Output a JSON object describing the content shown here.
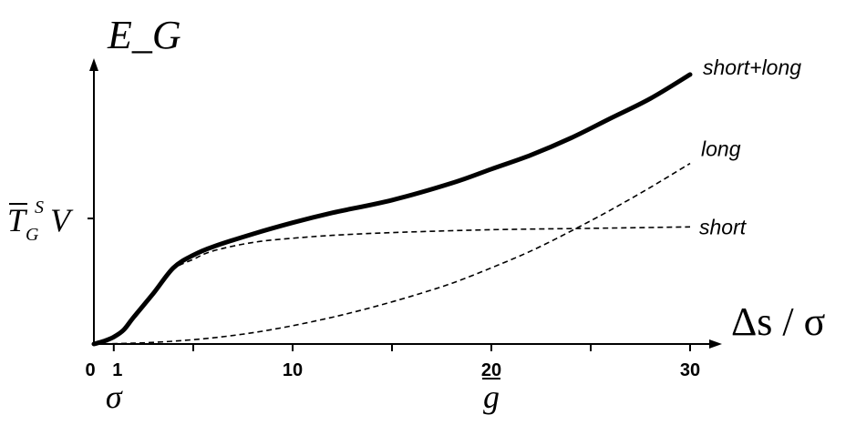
{
  "chart_data": {
    "type": "line",
    "title": "",
    "xlabel": "Δs / σ",
    "ylabel": "E_G",
    "xlim": [
      0,
      32
    ],
    "ylim": [
      0,
      1
    ],
    "x_ticks": [
      {
        "value": 0,
        "label": "0"
      },
      {
        "value": 1,
        "label": "1"
      },
      {
        "value": 5,
        "label": ""
      },
      {
        "value": 10,
        "label": "10"
      },
      {
        "value": 15,
        "label": ""
      },
      {
        "value": 20,
        "label": "20"
      },
      {
        "value": 25,
        "label": ""
      },
      {
        "value": 30,
        "label": "30"
      }
    ],
    "x_annotations": [
      {
        "value": 1,
        "text": "σ"
      },
      {
        "value": 20,
        "text": "g",
        "overbar": true
      }
    ],
    "y_ticks": [
      {
        "value": 0.445,
        "label": "T_G^S V"
      }
    ],
    "series": [
      {
        "name": "short+long",
        "style": "solid",
        "points": [
          [
            0,
            0
          ],
          [
            0.5,
            0.01
          ],
          [
            1,
            0.025
          ],
          [
            1.5,
            0.05
          ],
          [
            2,
            0.095
          ],
          [
            3,
            0.18
          ],
          [
            4,
            0.27
          ],
          [
            5,
            0.315
          ],
          [
            6,
            0.345
          ],
          [
            8,
            0.39
          ],
          [
            10,
            0.43
          ],
          [
            12,
            0.465
          ],
          [
            15,
            0.51
          ],
          [
            18,
            0.57
          ],
          [
            20,
            0.62
          ],
          [
            22,
            0.67
          ],
          [
            24,
            0.73
          ],
          [
            26,
            0.8
          ],
          [
            28,
            0.87
          ],
          [
            30,
            0.955
          ]
        ]
      },
      {
        "name": "long",
        "style": "dashed",
        "points": [
          [
            0,
            0
          ],
          [
            2,
            0.003
          ],
          [
            4,
            0.01
          ],
          [
            6,
            0.022
          ],
          [
            8,
            0.04
          ],
          [
            10,
            0.065
          ],
          [
            12,
            0.095
          ],
          [
            14,
            0.13
          ],
          [
            16,
            0.17
          ],
          [
            18,
            0.215
          ],
          [
            20,
            0.27
          ],
          [
            22,
            0.33
          ],
          [
            24,
            0.4
          ],
          [
            26,
            0.475
          ],
          [
            28,
            0.555
          ],
          [
            30,
            0.64
          ]
        ]
      },
      {
        "name": "short",
        "style": "dashed",
        "points": [
          [
            0,
            0
          ],
          [
            0.5,
            0.01
          ],
          [
            1,
            0.025
          ],
          [
            1.5,
            0.05
          ],
          [
            2,
            0.095
          ],
          [
            3,
            0.18
          ],
          [
            4,
            0.265
          ],
          [
            5,
            0.3
          ],
          [
            6,
            0.33
          ],
          [
            8,
            0.36
          ],
          [
            10,
            0.375
          ],
          [
            12,
            0.385
          ],
          [
            15,
            0.395
          ],
          [
            20,
            0.405
          ],
          [
            25,
            0.41
          ],
          [
            30,
            0.415
          ]
        ]
      }
    ],
    "series_labels": [
      "short+long",
      "long",
      "short"
    ]
  }
}
